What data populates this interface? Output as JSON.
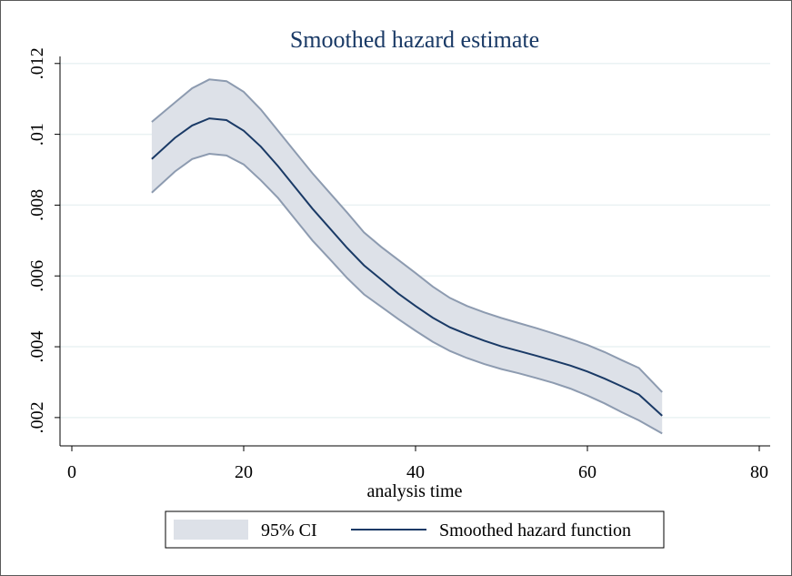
{
  "chart_data": {
    "type": "area",
    "title": "Smoothed hazard estimate",
    "xlabel": "analysis time",
    "ylabel": "",
    "xlim": [
      0,
      80
    ],
    "ylim": [
      0.0012,
      0.0122
    ],
    "x_ticks": [
      0,
      20,
      40,
      60,
      80
    ],
    "x_tick_labels": [
      "0",
      "20",
      "40",
      "60",
      "80"
    ],
    "y_ticks": [
      0.002,
      0.004,
      0.006,
      0.008,
      0.01,
      0.012
    ],
    "y_tick_labels": [
      ".002",
      ".004",
      ".006",
      ".008",
      ".01",
      ".012"
    ],
    "grid": "horizontal",
    "legend_position": "bottom",
    "x": [
      9.3,
      12,
      14,
      16,
      18,
      20,
      22,
      24,
      26,
      28,
      30,
      32,
      34,
      36,
      38,
      40,
      42,
      44,
      46,
      48,
      50,
      52,
      54,
      56,
      58,
      60,
      62,
      64,
      66,
      68.7
    ],
    "series": [
      {
        "name": "Smoothed hazard function",
        "values": [
          0.0093,
          0.0099,
          0.01025,
          0.01045,
          0.0104,
          0.0101,
          0.00965,
          0.0091,
          0.0085,
          0.0079,
          0.00735,
          0.0068,
          0.0063,
          0.0059,
          0.0055,
          0.00515,
          0.00482,
          0.00455,
          0.00435,
          0.00417,
          0.00401,
          0.00388,
          0.00375,
          0.00361,
          0.00347,
          0.0033,
          0.0031,
          0.00288,
          0.00265,
          0.00205
        ]
      },
      {
        "name": "95% CI",
        "lower": [
          0.00835,
          0.00895,
          0.0093,
          0.00945,
          0.0094,
          0.00915,
          0.0087,
          0.0082,
          0.0076,
          0.007,
          0.00648,
          0.00595,
          0.00548,
          0.00513,
          0.00478,
          0.00445,
          0.00414,
          0.00388,
          0.00368,
          0.00351,
          0.00337,
          0.00325,
          0.00312,
          0.00298,
          0.00282,
          0.00262,
          0.0024,
          0.00215,
          0.00192,
          0.00155
        ],
        "upper": [
          0.01035,
          0.0109,
          0.0113,
          0.01155,
          0.0115,
          0.0112,
          0.0107,
          0.0101,
          0.0095,
          0.0089,
          0.00835,
          0.0078,
          0.00723,
          0.00682,
          0.00645,
          0.00608,
          0.0057,
          0.00538,
          0.00515,
          0.00497,
          0.00481,
          0.00467,
          0.00453,
          0.00438,
          0.00422,
          0.00405,
          0.00385,
          0.00362,
          0.0034,
          0.00272
        ]
      }
    ],
    "legend": [
      "95% CI",
      "Smoothed hazard function"
    ],
    "colors": {
      "ci_fill": "#dde1e8",
      "ci_edge": "#8d9bb0",
      "line": "#1a3a66",
      "grid": "#eaf2f3",
      "axis": "#000000"
    }
  }
}
